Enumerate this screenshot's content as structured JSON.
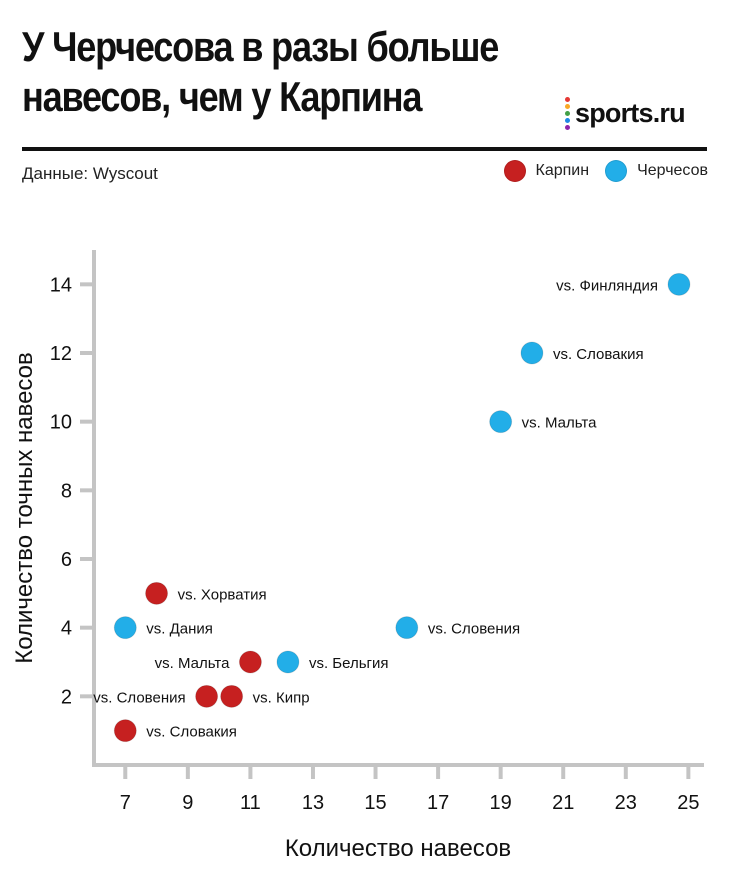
{
  "header": {
    "title_line1": "У Черчесова в разы больше",
    "title_line2": "навесов, чем у Карпина",
    "logo_text": "sports.ru",
    "logo_dot_colors": [
      "#e53935",
      "#f9a825",
      "#43a047",
      "#1e88e5",
      "#8e24aa"
    ],
    "source": "Данные: Wyscout"
  },
  "legend": [
    {
      "name": "Карпин",
      "color": "#c62020"
    },
    {
      "name": "Черчесов",
      "color": "#22aee8"
    }
  ],
  "chart_data": {
    "type": "scatter",
    "title": "У Черчесова в разы больше навесов, чем у Карпина",
    "xlabel": "Количество навесов",
    "ylabel": "Количество точных навесов",
    "xlim": [
      6,
      25.5
    ],
    "ylim": [
      0,
      15
    ],
    "xticks": [
      7,
      9,
      11,
      13,
      15,
      17,
      19,
      21,
      23,
      25
    ],
    "yticks": [
      2,
      4,
      6,
      8,
      10,
      12,
      14
    ],
    "grid": false,
    "legend_position": "top-right",
    "series": [
      {
        "name": "Карпин",
        "color": "#c62020",
        "points": [
          {
            "x": 8,
            "y": 5,
            "label": "vs. Хорватия",
            "label_side": "right"
          },
          {
            "x": 11,
            "y": 3,
            "label": "vs. Мальта",
            "label_side": "left"
          },
          {
            "x": 9.6,
            "y": 2,
            "label": "vs. Словения",
            "label_side": "left"
          },
          {
            "x": 10.4,
            "y": 2,
            "label": "vs. Кипр",
            "label_side": "right"
          },
          {
            "x": 7,
            "y": 1,
            "label": "vs. Словакия",
            "label_side": "right"
          }
        ]
      },
      {
        "name": "Черчесов",
        "color": "#22aee8",
        "points": [
          {
            "x": 24.7,
            "y": 14,
            "label": "vs. Финляндия",
            "label_side": "left"
          },
          {
            "x": 20,
            "y": 12,
            "label": "vs. Словакия",
            "label_side": "right"
          },
          {
            "x": 19,
            "y": 10,
            "label": "vs. Мальта",
            "label_side": "right"
          },
          {
            "x": 7,
            "y": 4,
            "label": "vs. Дания",
            "label_side": "right"
          },
          {
            "x": 16,
            "y": 4,
            "label": "vs. Словения",
            "label_side": "right"
          },
          {
            "x": 12.2,
            "y": 3,
            "label": "vs. Бельгия",
            "label_side": "right"
          }
        ]
      }
    ]
  }
}
